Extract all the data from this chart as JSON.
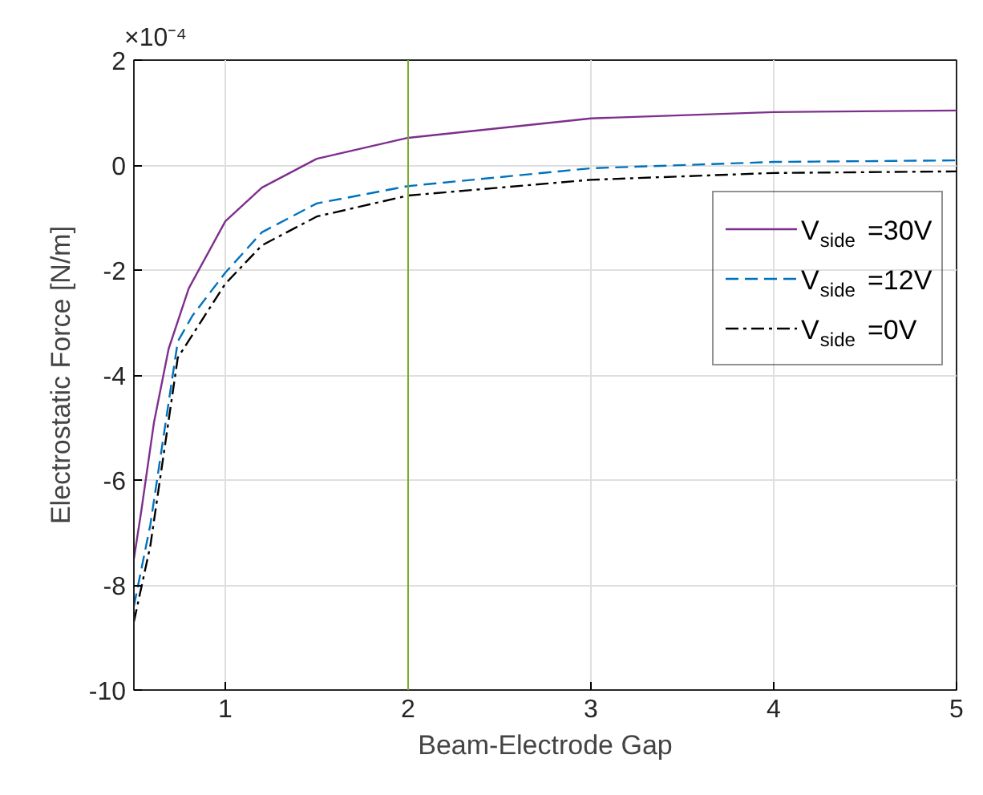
{
  "chart_data": {
    "type": "line",
    "xlabel": "Beam-Electrode Gap",
    "ylabel": "Electrostatic Force [N/m]",
    "annotations": [
      "×10⁻⁴"
    ],
    "xlim": [
      0.5,
      5
    ],
    "xticks": [
      1,
      2,
      3,
      4,
      5
    ],
    "ylim": [
      -10,
      2
    ],
    "yticks": [
      -10,
      -8,
      -6,
      -4,
      -2,
      0,
      2
    ],
    "grid": true,
    "legend": "top right",
    "marker": "none",
    "ref_lines": [
      {
        "axis": "x",
        "value": 2,
        "color": "#77ac30"
      }
    ],
    "series": [
      {
        "name": "V$_{side}$=30V",
        "color": "#7e2f8e",
        "line_style": "solid",
        "x": [
          0.5,
          0.54,
          0.61,
          0.69,
          0.8,
          1.0,
          1.2,
          1.5,
          2,
          3,
          4,
          5
        ],
        "values": [
          -7.5,
          -6.6,
          -4.9,
          -3.5,
          -2.35,
          -1.07,
          -0.43,
          0.12,
          0.52,
          0.89,
          1.01,
          1.04
        ]
      },
      {
        "name": "V$_{side}$=12V",
        "color": "#0072bd",
        "line_style": "dashed",
        "x": [
          0.5,
          0.59,
          0.74,
          0.82,
          1.0,
          1.2,
          1.5,
          2,
          3,
          4,
          5
        ],
        "values": [
          -8.4,
          -6.85,
          -3.36,
          -2.87,
          -2.05,
          -1.28,
          -0.73,
          -0.4,
          -0.06,
          0.06,
          0.09
        ]
      },
      {
        "name": "V$_{side}$=0V",
        "color": "#000000",
        "line_style": "dashdot",
        "x": [
          0.5,
          0.59,
          0.74,
          1.0,
          1.2,
          1.5,
          2,
          3,
          4,
          5
        ],
        "values": [
          -8.7,
          -7.25,
          -3.67,
          -2.26,
          -1.53,
          -0.98,
          -0.58,
          -0.28,
          -0.15,
          -0.12
        ]
      }
    ]
  }
}
